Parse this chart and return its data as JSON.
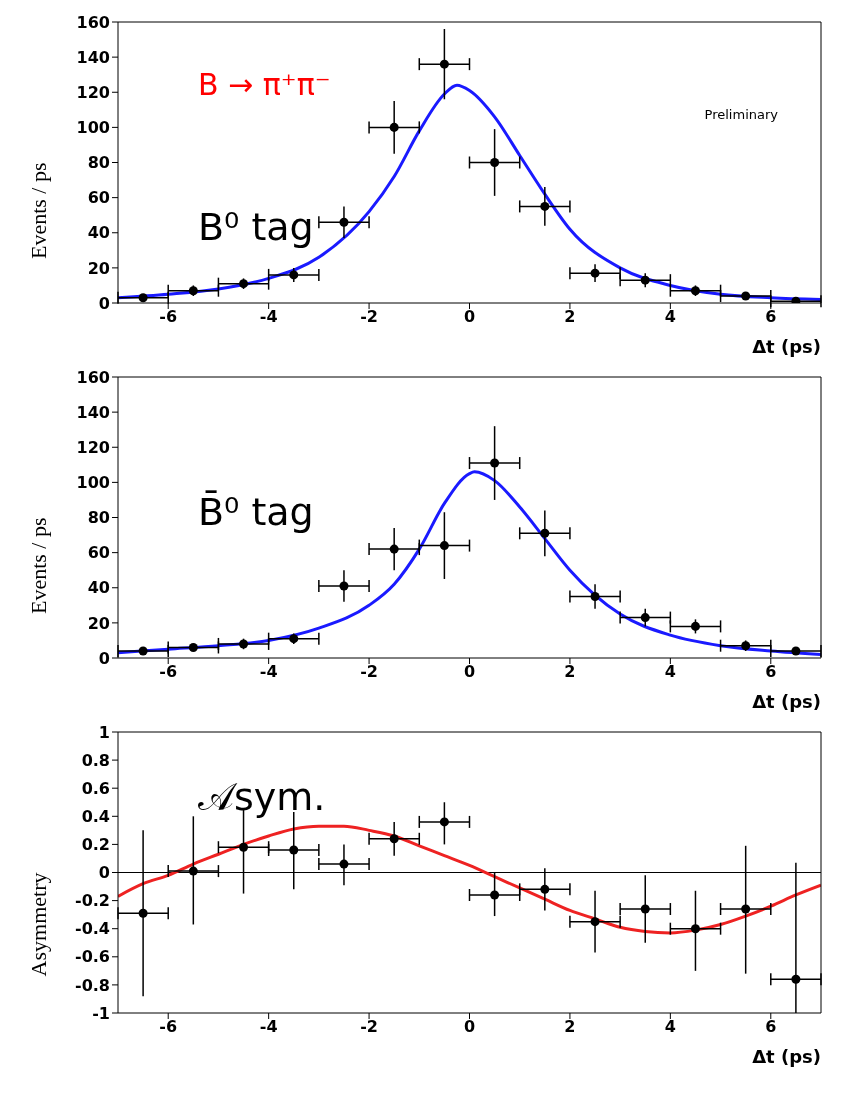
{
  "chart_data": [
    {
      "type": "scatter",
      "xlabel": "Δt (ps)",
      "ylabel": "Events / ps",
      "annotations": [
        "B → π⁺π⁻",
        "B⁰ tag",
        "Preliminary"
      ],
      "xlim": [
        -7,
        7
      ],
      "xticks": [
        -6,
        -4,
        -2,
        0,
        2,
        4,
        6
      ],
      "ylim": [
        0,
        160
      ],
      "yticks": [
        0,
        20,
        40,
        60,
        80,
        100,
        120,
        140,
        160
      ],
      "series": [
        {
          "color": "#000000",
          "marker": "circle",
          "x": [
            -6.5,
            -5.5,
            -4.5,
            -3.5,
            -2.5,
            -1.5,
            -0.5,
            0.5,
            1.5,
            2.5,
            3.5,
            4.5,
            5.5,
            6.5
          ],
          "values": [
            3,
            7,
            11,
            16,
            46,
            100,
            136,
            80,
            55,
            17,
            13,
            7,
            4,
            1
          ],
          "errors": [
            2,
            3,
            3,
            4,
            9,
            15,
            20,
            19,
            11,
            5,
            4,
            3,
            2,
            1
          ],
          "xerrors": [
            0.5,
            0.5,
            0.5,
            0.5,
            0.5,
            0.5,
            0.5,
            0.5,
            0.5,
            0.5,
            0.5,
            0.5,
            0.5,
            0.5
          ]
        },
        {
          "type": "line",
          "color": "#1a1aff",
          "marker": "none",
          "x": [
            -7,
            -6,
            -5,
            -4,
            -3,
            -2,
            -1.5,
            -1,
            -0.5,
            -0.25,
            0,
            0.5,
            1,
            1.5,
            2,
            3,
            4,
            5,
            6,
            7
          ],
          "values": [
            3,
            5,
            8,
            14,
            26,
            52,
            72,
            98,
            119,
            124,
            121,
            106,
            84,
            62,
            42,
            20,
            10,
            5,
            3,
            2
          ]
        }
      ]
    },
    {
      "type": "scatter",
      "xlabel": "Δt (ps)",
      "ylabel": "Events / ps",
      "annotations": [
        "B̄⁰ tag"
      ],
      "xlim": [
        -7,
        7
      ],
      "xticks": [
        -6,
        -4,
        -2,
        0,
        2,
        4,
        6
      ],
      "ylim": [
        0,
        160
      ],
      "yticks": [
        0,
        20,
        40,
        60,
        80,
        100,
        120,
        140,
        160
      ],
      "series": [
        {
          "color": "#000000",
          "marker": "circle",
          "x": [
            -6.5,
            -5.5,
            -4.5,
            -3.5,
            -2.5,
            -1.5,
            -0.5,
            0.5,
            1.5,
            2.5,
            3.5,
            4.5,
            5.5,
            6.5
          ],
          "values": [
            4,
            6,
            8,
            11,
            41,
            62,
            64,
            111,
            71,
            35,
            23,
            18,
            7,
            4
          ],
          "errors": [
            2,
            2,
            3,
            3,
            9,
            12,
            19,
            21,
            13,
            7,
            5,
            4,
            3,
            2
          ],
          "xerrors": [
            0.5,
            0.5,
            0.5,
            0.5,
            0.5,
            0.5,
            0.5,
            0.5,
            0.5,
            0.5,
            0.5,
            0.5,
            0.5,
            0.5
          ]
        },
        {
          "type": "line",
          "color": "#1a1aff",
          "marker": "none",
          "x": [
            -7,
            -6,
            -5,
            -4,
            -3,
            -2,
            -1.5,
            -1,
            -0.5,
            0,
            0.1,
            0.5,
            1,
            1.5,
            2,
            3,
            4,
            5,
            6,
            7
          ],
          "values": [
            3,
            5,
            7,
            10,
            17,
            30,
            42,
            62,
            88,
            105,
            106,
            101,
            86,
            68,
            50,
            25,
            13,
            7,
            4,
            2
          ]
        }
      ]
    },
    {
      "type": "scatter",
      "xlabel": "Δt (ps)",
      "ylabel": "Asymmetry",
      "annotations": [
        "𝒜sym."
      ],
      "xlim": [
        -7,
        7
      ],
      "xticks": [
        -6,
        -4,
        -2,
        0,
        2,
        4,
        6
      ],
      "ylim": [
        -1,
        1
      ],
      "yticks": [
        -1,
        -0.8,
        -0.6,
        -0.4,
        -0.2,
        0,
        0.2,
        0.4,
        0.6,
        0.8,
        1
      ],
      "ref_lines": [
        {
          "axis": "y",
          "value": 0,
          "color": "#000000"
        }
      ],
      "series": [
        {
          "color": "#000000",
          "marker": "circle",
          "x": [
            -6.5,
            -5.5,
            -4.5,
            -3.5,
            -2.5,
            -1.5,
            -0.5,
            0.5,
            1.5,
            2.5,
            3.5,
            4.5,
            5.5,
            6.5
          ],
          "values": [
            -0.29,
            0.01,
            0.18,
            0.16,
            0.06,
            0.24,
            0.36,
            -0.16,
            -0.12,
            -0.35,
            -0.26,
            -0.4,
            -0.26,
            -0.76
          ],
          "errors": [
            [
              -0.88,
              0.3
            ],
            [
              -0.37,
              0.4
            ],
            [
              -0.15,
              0.45
            ],
            [
              -0.12,
              0.43
            ],
            [
              -0.09,
              0.2
            ],
            [
              0.12,
              0.36
            ],
            [
              0.2,
              0.5
            ],
            [
              -0.31,
              0
            ],
            [
              -0.27,
              0.03
            ],
            [
              -0.57,
              -0.13
            ],
            [
              -0.5,
              -0.02
            ],
            [
              -0.7,
              -0.13
            ],
            [
              -0.72,
              0.19
            ],
            [
              -1,
              0.07
            ]
          ],
          "xerrors": [
            0.5,
            0.5,
            0.5,
            0.5,
            0.5,
            0.5,
            0.5,
            0.5,
            0.5,
            0.5,
            0.5,
            0.5,
            0.5,
            0.5
          ]
        },
        {
          "type": "line",
          "color": "#ee2222",
          "marker": "none",
          "x": [
            -7,
            -6.5,
            -6,
            -5.5,
            -5,
            -4.5,
            -4,
            -3.5,
            -3,
            -2.5,
            -2,
            -1.5,
            -1,
            -0.5,
            0,
            0.5,
            1,
            1.5,
            2,
            2.5,
            3,
            3.5,
            4,
            4.5,
            5,
            5.5,
            6,
            6.5,
            7
          ],
          "values": [
            -0.17,
            -0.08,
            -0.02,
            0.06,
            0.13,
            0.2,
            0.26,
            0.31,
            0.33,
            0.33,
            0.3,
            0.26,
            0.19,
            0.12,
            0.05,
            -0.03,
            -0.11,
            -0.19,
            -0.27,
            -0.33,
            -0.39,
            -0.42,
            -0.43,
            -0.41,
            -0.37,
            -0.31,
            -0.24,
            -0.16,
            -0.09
          ]
        }
      ]
    }
  ]
}
